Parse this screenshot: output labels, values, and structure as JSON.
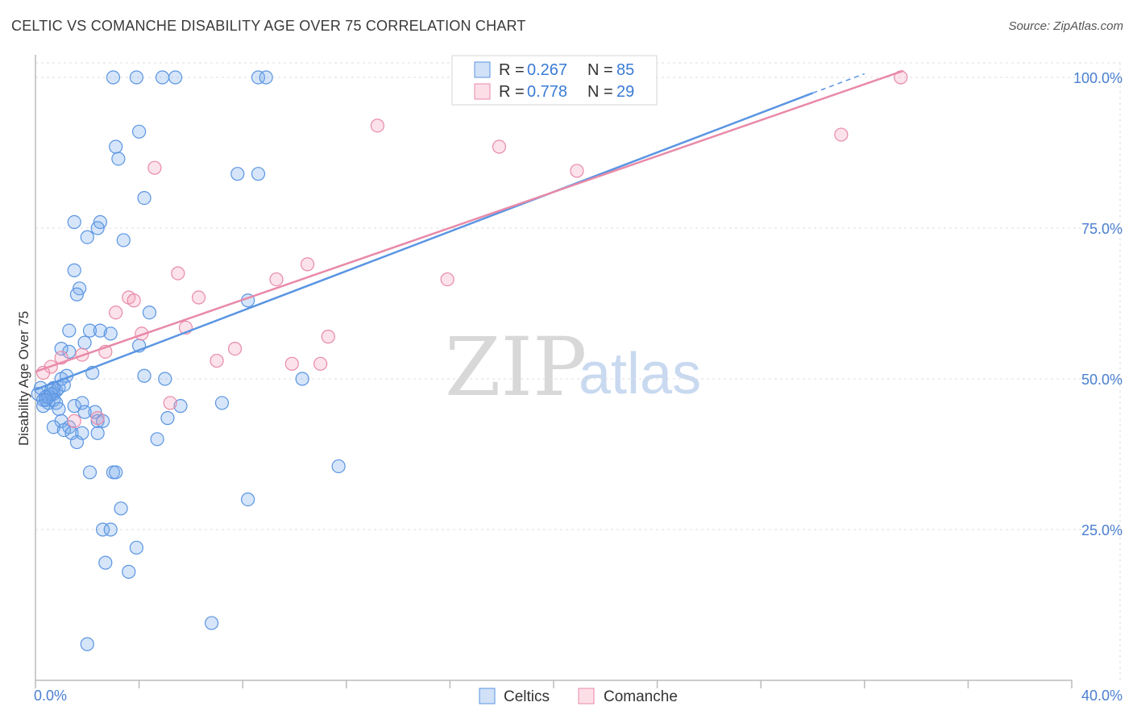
{
  "chart_data": {
    "type": "scatter",
    "title": "CELTIC VS COMANCHE DISABILITY AGE OVER 75 CORRELATION CHART",
    "source": "Source: ZipAtlas.com",
    "xlabel": "",
    "ylabel": "Disability Age Over 75",
    "xlim": [
      0,
      40
    ],
    "ylim": [
      0,
      105
    ],
    "x_tick_labels": [
      "0.0%",
      "40.0%"
    ],
    "y_ticks": [
      25,
      50,
      75,
      100
    ],
    "y_tick_labels": [
      "25.0%",
      "50.0%",
      "75.0%",
      "100.0%"
    ],
    "grid": true,
    "watermark": {
      "zip": "ZIP",
      "atlas": "atlas"
    },
    "legend": {
      "position": "top-center",
      "entries": [
        {
          "r_label": "R = ",
          "r_value": "0.267",
          "n_label": "N = ",
          "n_value": "85",
          "color": "#5a95e2"
        },
        {
          "r_label": "R = ",
          "r_value": "0.778",
          "n_label": "N = ",
          "n_value": "29",
          "color": "#e88aa8"
        }
      ]
    },
    "series": [
      {
        "name": "Celtics",
        "color": "#5a95e2",
        "trend": {
          "x": [
            0,
            30
          ],
          "y": [
            48.2,
            97.4
          ],
          "dash_to": [
            32,
            100.6
          ]
        },
        "points": [
          [
            0.1,
            47.5
          ],
          [
            0.2,
            48.5
          ],
          [
            0.3,
            46.5
          ],
          [
            0.4,
            47
          ],
          [
            0.5,
            46
          ],
          [
            0.6,
            48
          ],
          [
            0.7,
            47.5
          ],
          [
            0.8,
            48
          ],
          [
            0.3,
            45.5
          ],
          [
            0.5,
            47
          ],
          [
            0.7,
            46.5
          ],
          [
            0.9,
            48.5
          ],
          [
            1.0,
            50
          ],
          [
            1.2,
            50.5
          ],
          [
            0.8,
            46
          ],
          [
            0.6,
            47.5
          ],
          [
            0.4,
            46.5
          ],
          [
            0.9,
            45
          ],
          [
            1.1,
            49
          ],
          [
            0.7,
            48.5
          ],
          [
            3.0,
            100
          ],
          [
            3.9,
            100
          ],
          [
            4.9,
            100
          ],
          [
            5.4,
            100
          ],
          [
            8.6,
            100
          ],
          [
            8.9,
            100
          ],
          [
            4.0,
            91
          ],
          [
            3.1,
            88.5
          ],
          [
            3.2,
            86.5
          ],
          [
            7.8,
            84
          ],
          [
            8.6,
            84
          ],
          [
            4.2,
            80
          ],
          [
            1.5,
            76
          ],
          [
            2.5,
            76
          ],
          [
            2.4,
            75
          ],
          [
            2.0,
            73.5
          ],
          [
            3.4,
            73
          ],
          [
            1.5,
            68
          ],
          [
            1.7,
            65
          ],
          [
            1.6,
            64
          ],
          [
            8.2,
            63
          ],
          [
            4.4,
            61
          ],
          [
            1.3,
            58
          ],
          [
            2.1,
            58
          ],
          [
            2.5,
            58
          ],
          [
            2.9,
            57.5
          ],
          [
            1.9,
            56
          ],
          [
            1.0,
            55
          ],
          [
            1.3,
            54.5
          ],
          [
            4.0,
            55.5
          ],
          [
            2.2,
            51
          ],
          [
            4.2,
            50.5
          ],
          [
            5.0,
            50
          ],
          [
            10.3,
            50
          ],
          [
            1.5,
            45.5
          ],
          [
            1.8,
            46
          ],
          [
            2.3,
            44.5
          ],
          [
            1.9,
            44.5
          ],
          [
            7.2,
            46
          ],
          [
            5.6,
            45.5
          ],
          [
            1.0,
            43
          ],
          [
            5.1,
            43.5
          ],
          [
            2.4,
            43
          ],
          [
            2.6,
            43
          ],
          [
            0.7,
            42
          ],
          [
            1.3,
            42
          ],
          [
            1.1,
            41.5
          ],
          [
            1.4,
            41
          ],
          [
            1.8,
            41
          ],
          [
            2.4,
            41
          ],
          [
            4.7,
            40
          ],
          [
            1.6,
            39.5
          ],
          [
            11.7,
            35.5
          ],
          [
            2.1,
            34.5
          ],
          [
            3.0,
            34.5
          ],
          [
            3.1,
            34.5
          ],
          [
            8.2,
            30
          ],
          [
            3.3,
            28.5
          ],
          [
            2.6,
            25
          ],
          [
            2.9,
            25
          ],
          [
            3.9,
            22
          ],
          [
            2.7,
            19.5
          ],
          [
            3.6,
            18
          ],
          [
            6.8,
            9.5
          ],
          [
            2.0,
            6
          ]
        ]
      },
      {
        "name": "Comanche",
        "color": "#e88aa8",
        "trend": {
          "x": [
            0,
            33.5
          ],
          "y": [
            51.2,
            101.1
          ]
        },
        "points": [
          [
            33.4,
            100
          ],
          [
            13.2,
            92
          ],
          [
            31.1,
            90.5
          ],
          [
            17.9,
            88.5
          ],
          [
            20.9,
            84.5
          ],
          [
            4.6,
            85
          ],
          [
            5.5,
            67.5
          ],
          [
            9.3,
            66.5
          ],
          [
            10.5,
            69
          ],
          [
            15.9,
            66.5
          ],
          [
            3.6,
            63.5
          ],
          [
            3.8,
            63
          ],
          [
            6.3,
            63.5
          ],
          [
            3.1,
            61
          ],
          [
            4.1,
            57.5
          ],
          [
            5.8,
            58.5
          ],
          [
            11.3,
            57
          ],
          [
            7.7,
            55
          ],
          [
            2.7,
            54.5
          ],
          [
            1.8,
            54
          ],
          [
            1.0,
            53.5
          ],
          [
            0.6,
            52
          ],
          [
            7.0,
            53
          ],
          [
            9.9,
            52.5
          ],
          [
            11.0,
            52.5
          ],
          [
            0.3,
            51
          ],
          [
            5.2,
            46
          ],
          [
            1.5,
            43
          ],
          [
            2.4,
            43.5
          ]
        ]
      }
    ]
  }
}
